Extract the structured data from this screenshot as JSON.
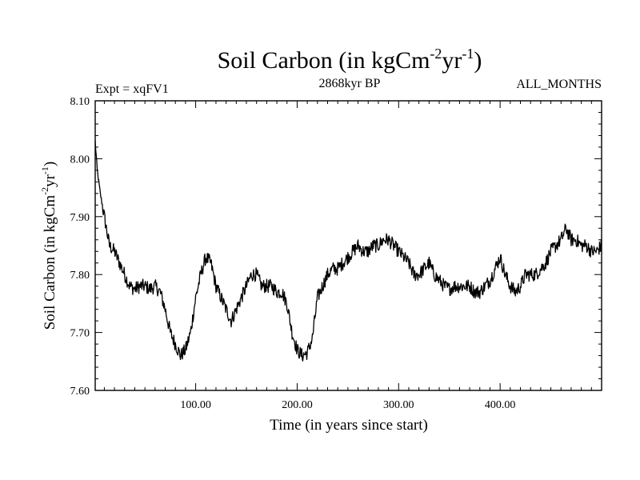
{
  "chart_data": {
    "type": "line",
    "title": {
      "base": "Soil Carbon (in kgCm",
      "sup1": "-2",
      "mid": "yr",
      "sup2": "-1",
      "end": ")"
    },
    "subtitle_left": "Expt = xqFV1",
    "subtitle_center": "2868kyr BP",
    "subtitle_right": "ALL_MONTHS",
    "xlabel": "Time (in years since start)",
    "ylabel": {
      "base": "Soil Carbon (in kgCm",
      "sup1": "-2",
      "mid": "yr",
      "sup2": "-1",
      "end": ")"
    },
    "xlim": [
      1,
      500
    ],
    "ylim": [
      7.6,
      8.1
    ],
    "x_ticks": [
      100,
      200,
      300,
      400
    ],
    "x_tick_labels": [
      "100.00",
      "200.00",
      "300.00",
      "400.00"
    ],
    "y_ticks": [
      7.6,
      7.7,
      7.8,
      7.9,
      8.0,
      8.1
    ],
    "y_tick_labels": [
      "7.60",
      "7.70",
      "7.80",
      "7.90",
      "8.00",
      "8.10"
    ],
    "grid": false,
    "series": [
      {
        "name": "Soil Carbon",
        "color": "#000000",
        "noise_amplitude": 0.012,
        "x": [
          1,
          3,
          6,
          10,
          15,
          20,
          25,
          30,
          35,
          40,
          45,
          50,
          55,
          60,
          65,
          70,
          75,
          80,
          85,
          90,
          95,
          100,
          105,
          110,
          115,
          120,
          125,
          130,
          135,
          140,
          145,
          150,
          155,
          160,
          165,
          170,
          175,
          180,
          185,
          190,
          195,
          200,
          205,
          210,
          215,
          220,
          225,
          230,
          235,
          240,
          245,
          250,
          255,
          260,
          265,
          270,
          275,
          280,
          285,
          290,
          295,
          300,
          305,
          310,
          315,
          320,
          325,
          330,
          335,
          340,
          345,
          350,
          355,
          360,
          365,
          370,
          375,
          380,
          385,
          390,
          395,
          400,
          405,
          410,
          415,
          420,
          425,
          430,
          435,
          440,
          445,
          450,
          455,
          460,
          465,
          470,
          475,
          480,
          485,
          490,
          495,
          500
        ],
        "y": [
          8.03,
          7.98,
          7.94,
          7.9,
          7.85,
          7.84,
          7.82,
          7.8,
          7.78,
          7.775,
          7.78,
          7.78,
          7.775,
          7.78,
          7.77,
          7.74,
          7.7,
          7.68,
          7.66,
          7.67,
          7.7,
          7.76,
          7.8,
          7.83,
          7.82,
          7.78,
          7.76,
          7.74,
          7.72,
          7.74,
          7.76,
          7.78,
          7.8,
          7.8,
          7.78,
          7.78,
          7.78,
          7.77,
          7.77,
          7.75,
          7.7,
          7.67,
          7.66,
          7.665,
          7.69,
          7.76,
          7.78,
          7.8,
          7.81,
          7.81,
          7.82,
          7.83,
          7.84,
          7.85,
          7.84,
          7.84,
          7.85,
          7.85,
          7.86,
          7.86,
          7.85,
          7.84,
          7.83,
          7.82,
          7.8,
          7.8,
          7.81,
          7.82,
          7.8,
          7.79,
          7.78,
          7.775,
          7.78,
          7.78,
          7.78,
          7.78,
          7.77,
          7.77,
          7.78,
          7.79,
          7.81,
          7.83,
          7.8,
          7.78,
          7.77,
          7.78,
          7.8,
          7.8,
          7.8,
          7.81,
          7.82,
          7.84,
          7.85,
          7.86,
          7.88,
          7.86,
          7.86,
          7.85,
          7.85,
          7.84,
          7.84,
          7.85
        ]
      }
    ]
  }
}
